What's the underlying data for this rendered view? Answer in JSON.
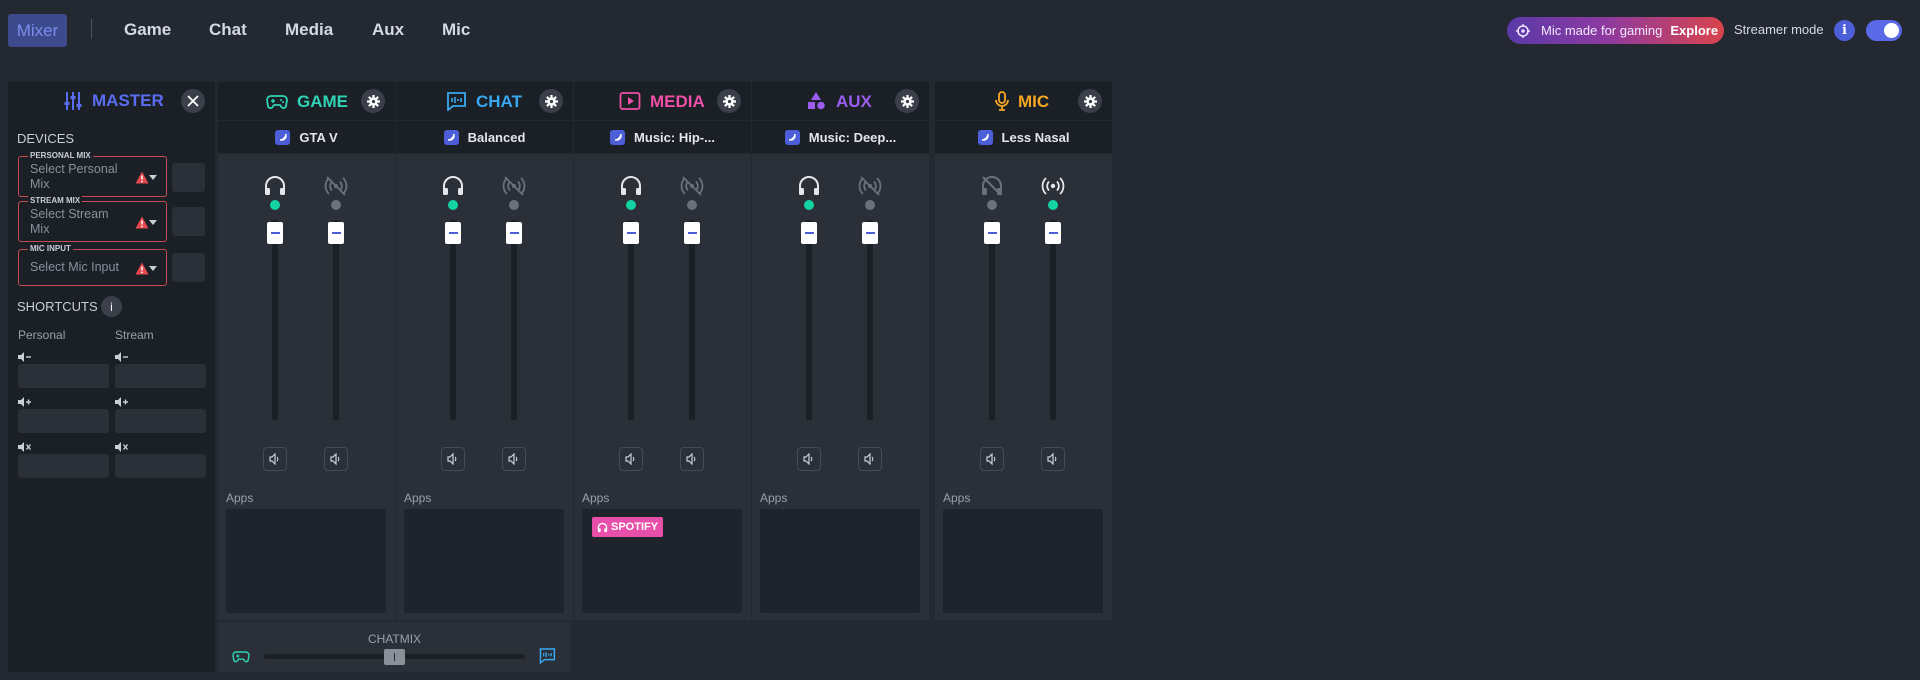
{
  "nav": {
    "active": "Mixer",
    "items": [
      "Game",
      "Chat",
      "Media",
      "Aux",
      "Mic"
    ]
  },
  "promo": {
    "text": "Mic made for gaming",
    "cta": "Explore"
  },
  "streamer_mode": {
    "label": "Streamer mode",
    "info": "i",
    "enabled": true
  },
  "master": {
    "title": "MASTER",
    "devices_label": "DEVICES",
    "devices": [
      {
        "legend": "PERSONAL MIX",
        "placeholder": "Select Personal Mix"
      },
      {
        "legend": "STREAM MIX",
        "placeholder": "Select Stream Mix"
      },
      {
        "legend": "MIC INPUT",
        "placeholder": "Select Mic Input"
      }
    ],
    "shortcuts_label": "SHORTCUTS",
    "shortcuts_info": "i",
    "col_personal": "Personal",
    "col_stream": "Stream"
  },
  "channels": [
    {
      "name": "GAME",
      "color": "#2fd3b4",
      "preset": "GTA V",
      "apps_label": "Apps"
    },
    {
      "name": "CHAT",
      "color": "#39a8f0",
      "preset": "Balanced",
      "apps_label": "Apps"
    },
    {
      "name": "MEDIA",
      "color": "#ef4fa6",
      "preset": "Music: Hip-...",
      "apps_label": "Apps",
      "app": "SPOTIFY"
    },
    {
      "name": "AUX",
      "color": "#9b5cf0",
      "preset": "Music: Deep...",
      "apps_label": "Apps"
    },
    {
      "name": "MIC",
      "color": "#f5a623",
      "preset": "Less Nasal",
      "apps_label": "Apps"
    }
  ],
  "chatmix": {
    "label": "CHATMIX",
    "value": 0.5
  },
  "colors": {
    "accent": "#4d5ed9",
    "active_dot": "#14d3a3",
    "inactive_dot": "#6b717c",
    "warning": "#e5484d"
  }
}
